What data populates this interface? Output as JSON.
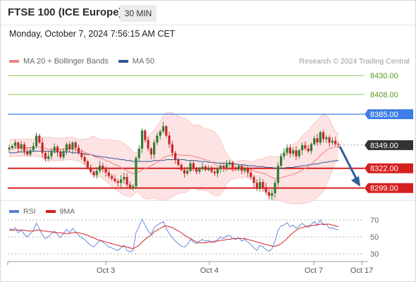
{
  "header": {
    "title": "FTSE 100 (ICE Europe)",
    "timeframe": "30 MIN",
    "timestamp": "Monday, October 7, 2024 7:56:15 AM CET"
  },
  "legend": {
    "ma20_label": "MA 20 + Bollinger Bands",
    "ma50_label": "MA 50",
    "credit": "Research © 2024 Trading Central"
  },
  "rsi_legend": {
    "rsi_label": "RSI",
    "ma_label": "9MA"
  },
  "colors": {
    "ma20": "#f08080",
    "ma50": "#2f5597",
    "band_fill": "#fde3e3",
    "up": "#2f7d32",
    "down": "#c62828",
    "resistance_green": "#7fbf3f",
    "resistance_blue": "#3d7ee6",
    "support_red": "#d62020",
    "last_price": "#333333",
    "rsi": "#5a7fd6",
    "rsi_ma": "#d62020",
    "arrow": "#2f5d9e"
  },
  "chart_data": [
    {
      "type": "candlestick",
      "title": "FTSE 100 (ICE Europe)",
      "timeframe": "30 MIN",
      "x_tick_labels": [
        "Oct 3",
        "Oct 4",
        "Oct 7",
        "Oct 17"
      ],
      "ylim": [
        8284,
        8440
      ],
      "levels": [
        {
          "value": 8430.0,
          "label": "8430.00",
          "kind": "resistance",
          "color": "green"
        },
        {
          "value": 8408.0,
          "label": "8408.00",
          "kind": "resistance",
          "color": "green"
        },
        {
          "value": 8385.0,
          "label": "8385.00",
          "kind": "pivot",
          "color": "blue"
        },
        {
          "value": 8349.0,
          "label": "8349.00",
          "kind": "last_price",
          "color": "dark"
        },
        {
          "value": 8322.0,
          "label": "8322.00",
          "kind": "support",
          "color": "red"
        },
        {
          "value": 8299.0,
          "label": "8299.00",
          "kind": "support",
          "color": "red"
        }
      ],
      "close": [
        8346,
        8348,
        8352,
        8345,
        8350,
        8342,
        8338,
        8343,
        8348,
        8360,
        8352,
        8340,
        8333,
        8336,
        8342,
        8347,
        8341,
        8335,
        8342,
        8350,
        8344,
        8352,
        8346,
        8340,
        8335,
        8330,
        8323,
        8318,
        8314,
        8319,
        8325,
        8321,
        8317,
        8313,
        8310,
        8307,
        8305,
        8309,
        8312,
        8303,
        8299,
        8301,
        8334,
        8345,
        8366,
        8355,
        8345,
        8338,
        8352,
        8360,
        8365,
        8371,
        8360,
        8350,
        8340,
        8332,
        8326,
        8320,
        8316,
        8319,
        8328,
        8322,
        8318,
        8321,
        8324,
        8320,
        8322,
        8318,
        8316,
        8321,
        8325,
        8323,
        8327,
        8329,
        8323,
        8321,
        8325,
        8319,
        8322,
        8317,
        8312,
        8305,
        8299,
        8306,
        8300,
        8294,
        8290,
        8293,
        8305,
        8325,
        8336,
        8340,
        8346,
        8339,
        8343,
        8336,
        8343,
        8349,
        8345,
        8342,
        8350,
        8357,
        8352,
        8364,
        8356,
        8358,
        8352,
        8354,
        8350,
        8349
      ],
      "ma20": [
        8345,
        8346,
        8346,
        8346,
        8346,
        8346,
        8346,
        8346,
        8346,
        8347,
        8347,
        8346,
        8345,
        8344,
        8344,
        8344,
        8344,
        8344,
        8344,
        8345,
        8345,
        8345,
        8344,
        8343,
        8342,
        8341,
        8339,
        8338,
        8336,
        8335,
        8334,
        8333,
        8331,
        8330,
        8328,
        8326,
        8325,
        8323,
        8321,
        8319,
        8317,
        8316,
        8317,
        8318,
        8320,
        8322,
        8323,
        8325,
        8327,
        8329,
        8331,
        8334,
        8336,
        8337,
        8338,
        8338,
        8338,
        8337,
        8337,
        8337,
        8337,
        8336,
        8335,
        8334,
        8333,
        8332,
        8331,
        8329,
        8327,
        8325,
        8323,
        8321,
        8321,
        8321,
        8320,
        8320,
        8321,
        8321,
        8321,
        8321,
        8320,
        8319,
        8318,
        8317,
        8316,
        8315,
        8313,
        8311,
        8310,
        8310,
        8311,
        8312,
        8313,
        8314,
        8315,
        8316,
        8318,
        8320,
        8322,
        8324,
        8327,
        8330,
        8333,
        8337,
        8340,
        8343,
        8345,
        8346,
        8347,
        8347
      ],
      "ma50": [
        8340,
        8340,
        8340,
        8341,
        8341,
        8341,
        8341,
        8341,
        8342,
        8342,
        8342,
        8342,
        8342,
        8342,
        8342,
        8341,
        8341,
        8341,
        8341,
        8341,
        8341,
        8340,
        8340,
        8340,
        8339,
        8339,
        8338,
        8338,
        8337,
        8336,
        8336,
        8335,
        8335,
        8334,
        8334,
        8333,
        8333,
        8332,
        8332,
        8331,
        8331,
        8330,
        8330,
        8330,
        8330,
        8330,
        8330,
        8330,
        8331,
        8331,
        8331,
        8331,
        8332,
        8332,
        8332,
        8332,
        8332,
        8332,
        8332,
        8331,
        8331,
        8331,
        8331,
        8330,
        8330,
        8330,
        8329,
        8329,
        8329,
        8328,
        8328,
        8328,
        8328,
        8327,
        8327,
        8327,
        8326,
        8326,
        8326,
        8325,
        8325,
        8325,
        8324,
        8324,
        8324,
        8323,
        8323,
        8323,
        8322,
        8322,
        8322,
        8322,
        8323,
        8323,
        8323,
        8324,
        8324,
        8325,
        8325,
        8326,
        8326,
        8327,
        8327,
        8328,
        8329,
        8329,
        8330,
        8330,
        8331,
        8331
      ],
      "projection": {
        "from": 8349.0,
        "to": 8299.0,
        "direction": "down"
      }
    },
    {
      "type": "line",
      "series": [
        {
          "name": "RSI",
          "values": [
            60,
            58,
            61,
            55,
            58,
            53,
            50,
            54,
            57,
            66,
            60,
            52,
            48,
            50,
            54,
            57,
            53,
            49,
            54,
            59,
            55,
            60,
            56,
            52,
            49,
            47,
            43,
            40,
            38,
            42,
            46,
            44,
            41,
            38,
            37,
            35,
            34,
            37,
            40,
            34,
            32,
            34,
            55,
            62,
            71,
            64,
            57,
            53,
            61,
            64,
            66,
            68,
            60,
            54,
            49,
            45,
            42,
            39,
            38,
            41,
            47,
            44,
            42,
            45,
            47,
            45,
            46,
            44,
            43,
            47,
            50,
            48,
            51,
            52,
            48,
            47,
            49,
            45,
            47,
            44,
            41,
            37,
            34,
            40,
            38,
            35,
            33,
            36,
            45,
            58,
            63,
            64,
            67,
            62,
            64,
            60,
            63,
            66,
            63,
            61,
            65,
            68,
            64,
            70,
            64,
            65,
            60,
            61,
            59,
            58
          ]
        },
        {
          "name": "9MA",
          "values": [
            58,
            58,
            58,
            58,
            58,
            58,
            57,
            57,
            57,
            58,
            58,
            57,
            57,
            56,
            56,
            55,
            55,
            55,
            54,
            54,
            54,
            55,
            55,
            55,
            54,
            53,
            52,
            50,
            49,
            47,
            46,
            45,
            44,
            43,
            42,
            41,
            40,
            39,
            39,
            38,
            37,
            36,
            38,
            40,
            44,
            47,
            50,
            52,
            56,
            58,
            60,
            62,
            63,
            62,
            61,
            59,
            57,
            55,
            52,
            50,
            48,
            46,
            44,
            43,
            43,
            43,
            44,
            44,
            45,
            45,
            46,
            46,
            47,
            47,
            48,
            48,
            48,
            48,
            48,
            47,
            46,
            45,
            44,
            43,
            42,
            41,
            40,
            39,
            39,
            40,
            42,
            45,
            48,
            52,
            55,
            58,
            60,
            61,
            62,
            63,
            63,
            64,
            64,
            65,
            65,
            65,
            65,
            64,
            63,
            62
          ]
        }
      ],
      "ylim": [
        20,
        80
      ],
      "y_ticks": [
        30,
        50,
        70
      ]
    }
  ]
}
